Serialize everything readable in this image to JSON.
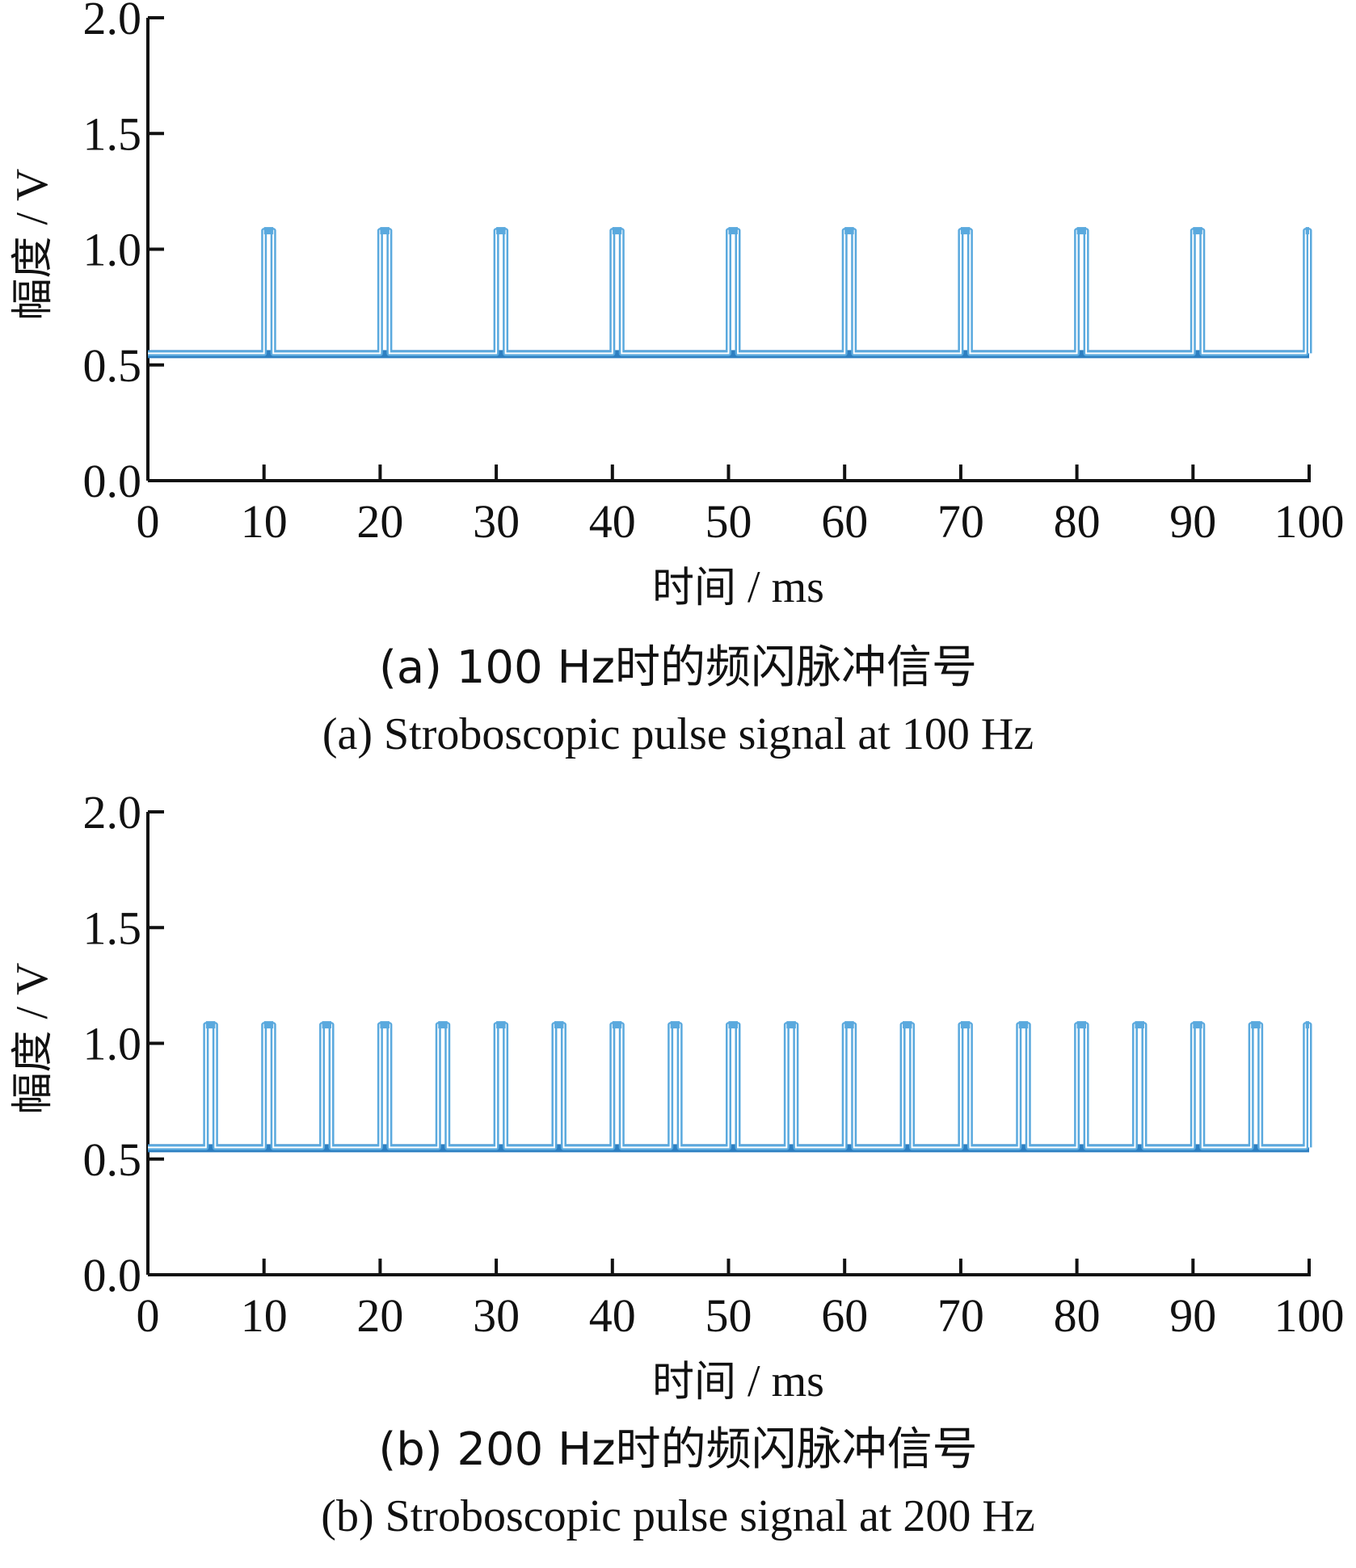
{
  "colors": {
    "axis": "#111111",
    "pulse": "#5aa9de",
    "baseline": "#2d7fc1"
  },
  "chart_data": [
    {
      "id": "panel-a",
      "type": "line",
      "caption_cn": "(a) 100 Hz时的频闪脉冲信号",
      "caption_en": "(a) Stroboscopic pulse signal at 100 Hz",
      "xlabel": {
        "cjk": "时间",
        "unit": " / ms"
      },
      "ylabel": {
        "cjk": "幅度",
        "unit": " / V"
      },
      "xlim": [
        0,
        100
      ],
      "ylim": [
        0,
        2.0
      ],
      "xticks": [
        0,
        10,
        20,
        30,
        40,
        50,
        60,
        70,
        80,
        90,
        100
      ],
      "xtick_labels": [
        "0",
        "10",
        "20",
        "30",
        "40",
        "50",
        "60",
        "70",
        "80",
        "90",
        "100"
      ],
      "yticks": [
        0,
        0.5,
        1.0,
        1.5,
        2.0
      ],
      "ytick_labels": [
        "0.0",
        "0.5",
        "1.0",
        "1.5",
        "2.0"
      ],
      "grid": false,
      "series": [
        {
          "baseline": 0.55,
          "pulse_high": 1.08,
          "pulse_width_ms": 0.8,
          "pulse_starts_ms": [
            10,
            20,
            30,
            40,
            50,
            60,
            70,
            80,
            90,
            99.7
          ]
        }
      ]
    },
    {
      "id": "panel-b",
      "type": "line",
      "caption_cn": "(b) 200 Hz时的频闪脉冲信号",
      "caption_en": "(b) Stroboscopic pulse signal at 200 Hz",
      "xlabel": {
        "cjk": "时间",
        "unit": " / ms"
      },
      "ylabel": {
        "cjk": "幅度",
        "unit": " / V"
      },
      "xlim": [
        0,
        100
      ],
      "ylim": [
        0,
        2.0
      ],
      "xticks": [
        0,
        10,
        20,
        30,
        40,
        50,
        60,
        70,
        80,
        90,
        100
      ],
      "xtick_labels": [
        "0",
        "10",
        "20",
        "30",
        "40",
        "50",
        "60",
        "70",
        "80",
        "90",
        "100"
      ],
      "yticks": [
        0,
        0.5,
        1.0,
        1.5,
        2.0
      ],
      "ytick_labels": [
        "0.0",
        "0.5",
        "1.0",
        "1.5",
        "2.0"
      ],
      "grid": false,
      "series": [
        {
          "baseline": 0.55,
          "pulse_high": 1.08,
          "pulse_width_ms": 0.8,
          "pulse_starts_ms": [
            5,
            10,
            15,
            20,
            25,
            30,
            35,
            40,
            45,
            50,
            55,
            60,
            65,
            70,
            75,
            80,
            85,
            90,
            95,
            99.7
          ]
        }
      ]
    }
  ]
}
